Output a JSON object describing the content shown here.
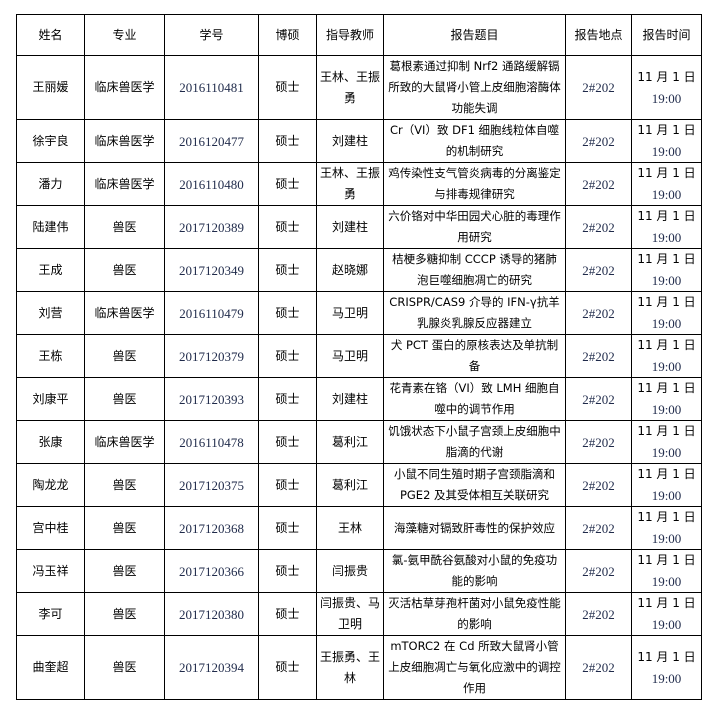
{
  "headers": [
    "姓名",
    "专业",
    "学号",
    "博硕",
    "指导教师",
    "报告题目",
    "报告地点",
    "报告时间"
  ],
  "rows": [
    {
      "name": "王丽媛",
      "major": "临床兽医学",
      "id": "2016110481",
      "degree": "硕士",
      "advisor": "王林、王振勇",
      "topic": "葛根素通过抑制 Nrf2 通路缓解镉所致的大鼠肾小管上皮细胞溶酶体功能失调",
      "place": "2#202",
      "date": "11 月 1 日",
      "time": "19:00"
    },
    {
      "name": "徐宇良",
      "major": "临床兽医学",
      "id": "2016120477",
      "degree": "硕士",
      "advisor": "刘建柱",
      "topic": "Cr（VI）致 DF1 细胞线粒体自噬的机制研究",
      "place": "2#202",
      "date": "11 月 1 日",
      "time": "19:00"
    },
    {
      "name": "潘力",
      "major": "临床兽医学",
      "id": "2016110480",
      "degree": "硕士",
      "advisor": "王林、王振勇",
      "topic": "鸡传染性支气管炎病毒的分离鉴定与排毒规律研究",
      "place": "2#202",
      "date": "11 月 1 日",
      "time": "19:00"
    },
    {
      "name": "陆建伟",
      "major": "兽医",
      "id": "2017120389",
      "degree": "硕士",
      "advisor": "刘建柱",
      "topic": "六价铬对中华田园犬心脏的毒理作用研究",
      "place": "2#202",
      "date": "11 月 1 日",
      "time": "19:00"
    },
    {
      "name": "王成",
      "major": "兽医",
      "id": "2017120349",
      "degree": "硕士",
      "advisor": "赵晓娜",
      "topic": "桔梗多糖抑制 CCCP 诱导的猪肺泡巨噬细胞凋亡的研究",
      "place": "2#202",
      "date": "11 月 1 日",
      "time": "19:00"
    },
    {
      "name": "刘营",
      "major": "临床兽医学",
      "id": "2016110479",
      "degree": "硕士",
      "advisor": "马卫明",
      "topic": "CRISPR/CAS9 介导的 IFN-γ抗羊乳腺炎乳腺反应器建立",
      "place": "2#202",
      "date": "11 月 1 日",
      "time": "19:00"
    },
    {
      "name": "王栋",
      "major": "兽医",
      "id": "2017120379",
      "degree": "硕士",
      "advisor": "马卫明",
      "topic": "犬 PCT 蛋白的原核表达及单抗制备",
      "place": "2#202",
      "date": "11 月 1 日",
      "time": "19:00"
    },
    {
      "name": "刘康平",
      "major": "兽医",
      "id": "2017120393",
      "degree": "硕士",
      "advisor": "刘建柱",
      "topic": "花青素在铬（VI）致 LMH 细胞自噬中的调节作用",
      "place": "2#202",
      "date": "11 月 1 日",
      "time": "19:00"
    },
    {
      "name": "张康",
      "major": "临床兽医学",
      "id": "2016110478",
      "degree": "硕士",
      "advisor": "葛利江",
      "topic": "饥饿状态下小鼠子宫颈上皮细胞中脂滴的代谢",
      "place": "2#202",
      "date": "11 月 1 日",
      "time": "19:00"
    },
    {
      "name": "陶龙龙",
      "major": "兽医",
      "id": "2017120375",
      "degree": "硕士",
      "advisor": "葛利江",
      "topic": "小鼠不同生殖时期子宫颈脂滴和 PGE2 及其受体相互关联研究",
      "place": "2#202",
      "date": "11 月 1 日",
      "time": "19:00"
    },
    {
      "name": "宫中桂",
      "major": "兽医",
      "id": "2017120368",
      "degree": "硕士",
      "advisor": "王林",
      "topic": "海藻糖对镉致肝毒性的保护效应",
      "place": "2#202",
      "date": "11 月 1 日",
      "time": "19:00"
    },
    {
      "name": "冯玉祥",
      "major": "兽医",
      "id": "2017120366",
      "degree": "硕士",
      "advisor": "闫振贵",
      "topic": "氯-氨甲酰谷氨酸对小鼠的免疫功能的影响",
      "place": "2#202",
      "date": "11 月 1 日",
      "time": "19:00"
    },
    {
      "name": "李可",
      "major": "兽医",
      "id": "2017120380",
      "degree": "硕士",
      "advisor": "闫振贵、马卫明",
      "topic": "灭活枯草芽孢杆菌对小鼠免疫性能的影响",
      "place": "2#202",
      "date": "11 月 1 日",
      "time": "19:00"
    },
    {
      "name": "曲奎超",
      "major": "兽医",
      "id": "2017120394",
      "degree": "硕士",
      "advisor": "王振勇、王林",
      "topic": "mTORC2 在 Cd 所致大鼠肾小管上皮细胞凋亡与氧化应激中的调控作用",
      "place": "2#202",
      "date": "11 月 1 日",
      "time": "19:00"
    }
  ]
}
